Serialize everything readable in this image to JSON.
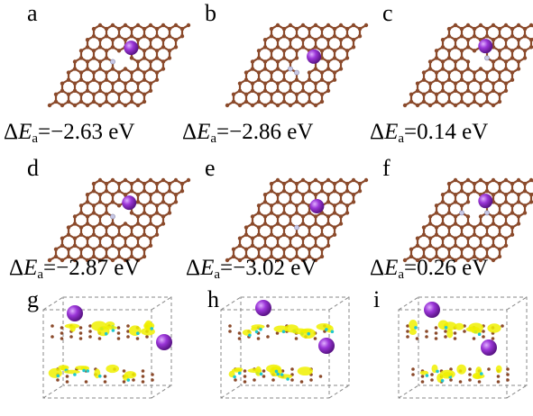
{
  "panels": [
    {
      "id": "a",
      "label": "a",
      "delta": "Δ",
      "E": "E",
      "sub": "a",
      "value": "=−2.63 eV"
    },
    {
      "id": "b",
      "label": "b",
      "delta": "Δ",
      "E": "E",
      "sub": "a",
      "value": "=−2.86 eV"
    },
    {
      "id": "c",
      "label": "c",
      "delta": "Δ",
      "E": "E",
      "sub": "a",
      "value": "=0.14 eV"
    },
    {
      "id": "d",
      "label": "d",
      "delta": "Δ",
      "E": "E",
      "sub": "a",
      "value": "=−2.87 eV"
    },
    {
      "id": "e",
      "label": "e",
      "delta": "Δ",
      "E": "E",
      "sub": "a",
      "value": "=−3.02 eV"
    },
    {
      "id": "f",
      "label": "f",
      "delta": "Δ",
      "E": "E",
      "sub": "a",
      "value": "=0.26 eV"
    }
  ],
  "charge_panels": [
    {
      "id": "g",
      "label": "g"
    },
    {
      "id": "h",
      "label": "h"
    },
    {
      "id": "i",
      "label": "i"
    }
  ],
  "colors": {
    "carbon": "#8b4a2b",
    "nitrogen": "#c8c8e6",
    "potassium": "#9b36d8",
    "accumulation": "#f0f000",
    "depletion": "#20c8d0",
    "cell_edge": "#888888"
  },
  "icons": {
    "atom": "sphere",
    "lattice": "hexagonal-lattice"
  }
}
